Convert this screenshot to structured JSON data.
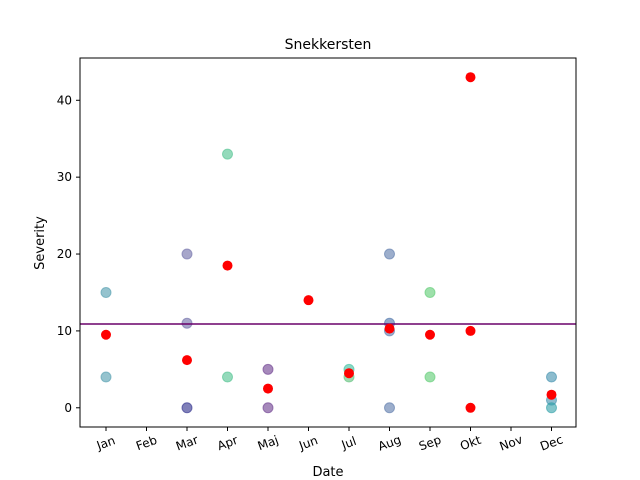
{
  "chart_data": {
    "type": "scatter",
    "title": "Snekkersten",
    "xlabel": "Date",
    "ylabel": "Severity",
    "categories": [
      "Jan",
      "Feb",
      "Mar",
      "Apr",
      "Maj",
      "Jun",
      "Jul",
      "Aug",
      "Sep",
      "Okt",
      "Nov",
      "Dec"
    ],
    "ylim": [
      -2.5,
      45.5
    ],
    "yticks": [
      0,
      10,
      20,
      30,
      40
    ],
    "grid": false,
    "reference_line": {
      "y": 10.9,
      "color": "#6a006a"
    },
    "series": [
      {
        "color": "#5d9cb0",
        "points": [
          {
            "x": "Jan",
            "y": 15,
            "color": "#4f9bad"
          },
          {
            "x": "Jan",
            "y": 4,
            "color": "#4f9bad"
          },
          {
            "x": "Mar",
            "y": 20,
            "color": "#6d6aa6"
          },
          {
            "x": "Mar",
            "y": 11,
            "color": "#6d6aa6"
          },
          {
            "x": "Mar",
            "y": 0,
            "color": "#2b2b8a"
          },
          {
            "x": "Apr",
            "y": 33,
            "color": "#4cc28e"
          },
          {
            "x": "Apr",
            "y": 4,
            "color": "#4cc28e"
          },
          {
            "x": "Maj",
            "y": 5,
            "color": "#6a3a8e"
          },
          {
            "x": "Maj",
            "y": 0,
            "color": "#6a3a8e"
          },
          {
            "x": "Jul",
            "y": 5,
            "color": "#3dbfa0"
          },
          {
            "x": "Jul",
            "y": 4,
            "color": "#5dbf7a"
          },
          {
            "x": "Aug",
            "y": 20,
            "color": "#5a78aa"
          },
          {
            "x": "Aug",
            "y": 11,
            "color": "#4a72a8"
          },
          {
            "x": "Aug",
            "y": 10,
            "color": "#5a78aa"
          },
          {
            "x": "Aug",
            "y": 0,
            "color": "#5a78aa"
          },
          {
            "x": "Sep",
            "y": 15,
            "color": "#5ccc72"
          },
          {
            "x": "Sep",
            "y": 4,
            "color": "#5ccc72"
          },
          {
            "x": "Dec",
            "y": 4,
            "color": "#3f8fae"
          },
          {
            "x": "Dec",
            "y": 1,
            "color": "#3f8fae"
          },
          {
            "x": "Dec",
            "y": 0,
            "color": "#31a0a8"
          }
        ]
      },
      {
        "color": "#ff0000",
        "points": [
          {
            "x": "Jan",
            "y": 9.5
          },
          {
            "x": "Mar",
            "y": 6.2
          },
          {
            "x": "Apr",
            "y": 18.5
          },
          {
            "x": "Maj",
            "y": 2.5
          },
          {
            "x": "Jun",
            "y": 14
          },
          {
            "x": "Jul",
            "y": 4.5
          },
          {
            "x": "Aug",
            "y": 10.3
          },
          {
            "x": "Sep",
            "y": 9.5
          },
          {
            "x": "Okt",
            "y": 43
          },
          {
            "x": "Okt",
            "y": 10
          },
          {
            "x": "Okt",
            "y": 0
          },
          {
            "x": "Dec",
            "y": 1.7
          }
        ]
      }
    ]
  }
}
